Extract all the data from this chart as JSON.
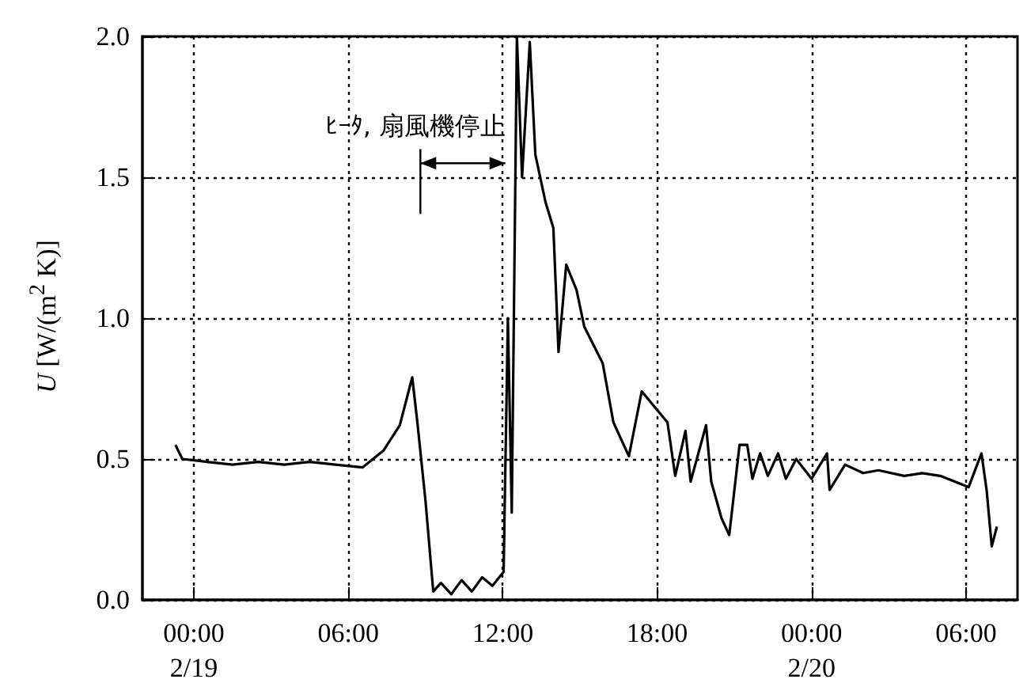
{
  "chart_data": {
    "type": "line",
    "ylabel": "U [W/(m$^{2}$ K)]",
    "annotations": [
      "ﾋｰﾀ, 扇風機停止"
    ],
    "x": [
      "--02-18T23:17",
      "--02-18T23:33",
      "--02-19T00:30",
      "--02-19T01:30",
      "--02-19T02:30",
      "--02-19T03:30",
      "--02-19T04:30",
      "--02-19T05:30",
      "--02-19T06:33",
      "--02-19T07:22",
      "--02-19T08:00",
      "--02-19T08:29",
      "--02-19T08:41",
      "--02-19T09:00",
      "--02-19T09:18",
      "--02-19T09:36",
      "--02-19T10:00",
      "--02-19T10:24",
      "--02-19T10:48",
      "--02-19T11:12",
      "--02-19T11:36",
      "--02-19T12:02",
      "--02-19T12:12",
      "--02-19T12:21",
      "--02-19T12:33",
      "--02-19T12:45",
      "--02-19T13:03",
      "--02-19T13:16",
      "--02-19T13:40",
      "--02-19T13:58",
      "--02-19T14:04",
      "--02-19T14:10",
      "--02-19T14:28",
      "--02-19T14:52",
      "--02-19T15:10",
      "--02-19T15:53",
      "--02-19T16:18",
      "--02-19T16:54",
      "--02-19T17:24",
      "--02-19T18:24",
      "--02-19T18:42",
      "--02-19T19:06",
      "--02-19T19:18",
      "--02-19T19:54",
      "--02-19T20:06",
      "--02-19T20:30",
      "--02-19T20:48",
      "--02-19T21:12",
      "--02-19T21:30",
      "--02-19T21:42",
      "--02-19T22:00",
      "--02-19T22:18",
      "--02-19T22:42",
      "--02-19T23:00",
      "--02-19T23:24",
      "--02-20T00:00",
      "--02-20T00:36",
      "--02-20T00:42",
      "--02-20T01:18",
      "--02-20T02:00",
      "--02-20T02:36",
      "--02-20T03:36",
      "--02-20T04:18",
      "--02-20T05:00",
      "--02-20T06:06",
      "--02-20T06:36",
      "--02-20T06:48",
      "--02-20T07:00",
      "--02-20T07:12"
    ],
    "series": [
      {
        "color": "#000000",
        "values": [
          0.55,
          0.5,
          0.49,
          0.48,
          0.49,
          0.48,
          0.49,
          0.48,
          0.47,
          0.53,
          0.62,
          0.79,
          0.63,
          0.35,
          0.03,
          0.06,
          0.02,
          0.07,
          0.03,
          0.08,
          0.05,
          0.1,
          1.0,
          0.31,
          2.0,
          1.5,
          1.98,
          1.58,
          1.41,
          1.32,
          1.1,
          0.88,
          1.19,
          1.1,
          0.97,
          0.84,
          0.63,
          0.51,
          0.74,
          0.63,
          0.44,
          0.6,
          0.42,
          0.62,
          0.42,
          0.29,
          0.23,
          0.55,
          0.55,
          0.43,
          0.52,
          0.44,
          0.52,
          0.43,
          0.5,
          0.43,
          0.52,
          0.39,
          0.48,
          0.45,
          0.46,
          0.44,
          0.45,
          0.44,
          0.4,
          0.52,
          0.39,
          0.19,
          0.26
        ]
      }
    ],
    "xlim": [
      "--02-18T22:00",
      "--02-20T08:00"
    ],
    "xticks": [
      {
        "value": "--02-19T00:00",
        "label": "00:00\n2/19"
      },
      {
        "value": "--02-19T06:00",
        "label": "06:00"
      },
      {
        "value": "--02-19T12:00",
        "label": "12:00"
      },
      {
        "value": "--02-19T18:00",
        "label": "18:00"
      },
      {
        "value": "--02-20T00:00",
        "label": "00:00\n2/20"
      },
      {
        "value": "--02-20T06:00",
        "label": "06:00"
      }
    ],
    "ylim": [
      0,
      2
    ],
    "yticks": [
      {
        "value": 0,
        "label": "0.0"
      },
      {
        "value": 0.5,
        "label": "0.5"
      },
      {
        "value": 1,
        "label": "1.0"
      },
      {
        "value": 1.5,
        "label": "1.5"
      },
      {
        "value": 2,
        "label": "2.0"
      }
    ],
    "grid": true,
    "marker": "none",
    "line_style": "solid"
  }
}
